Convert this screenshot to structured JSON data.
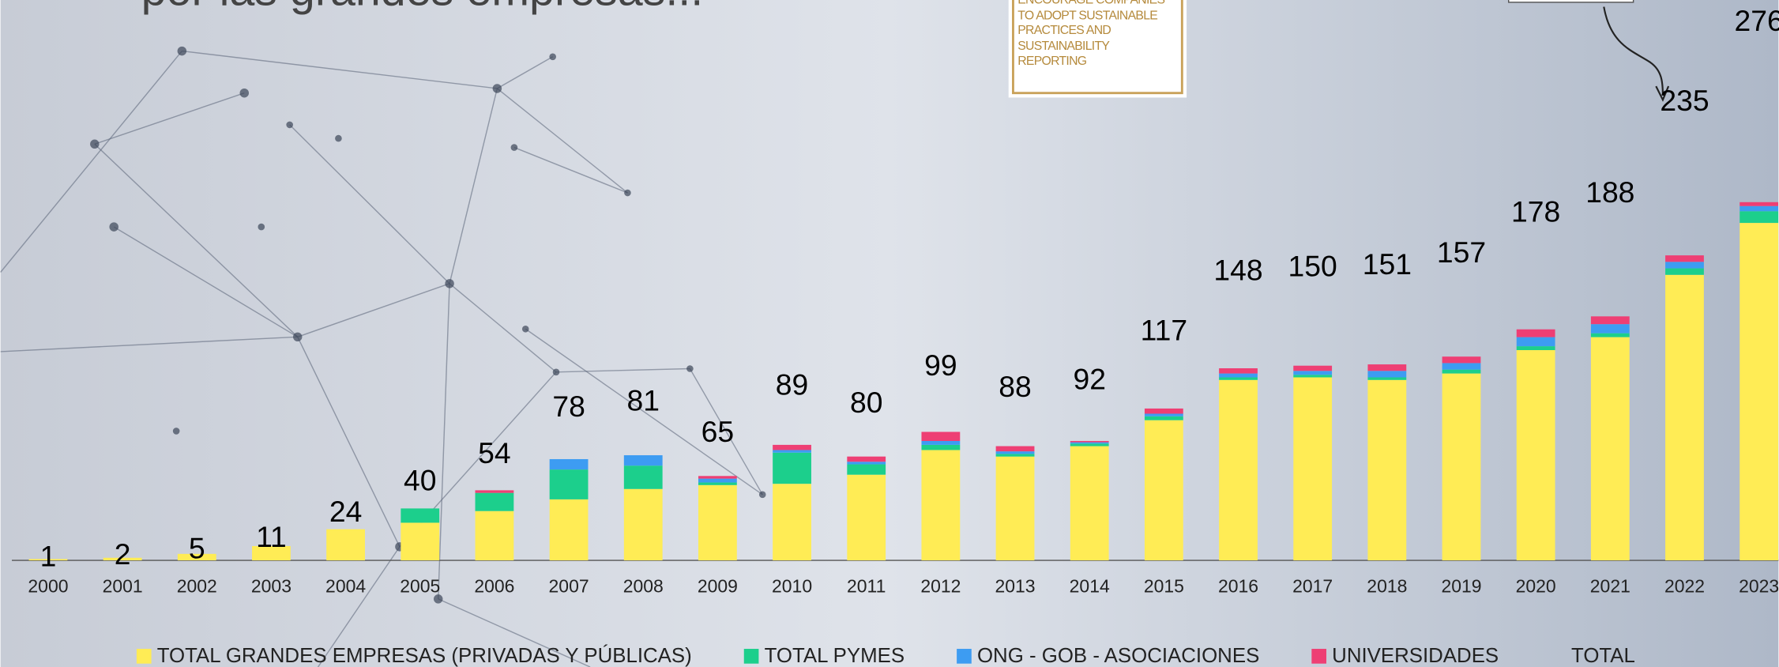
{
  "chart_data": {
    "type": "stacked-bar",
    "title": "por las grandes empresas...",
    "image_text": "ENCOURAGE COMPANIES TO ADOPT SUSTAINABLE PRACTICES AND SUSTAINABILITY REPORTING",
    "categories": [
      "2000",
      "2001",
      "2002",
      "2003",
      "2004",
      "2005",
      "2006",
      "2007",
      "2008",
      "2009",
      "2010",
      "2011",
      "2012",
      "2013",
      "2014",
      "2015",
      "2016",
      "2017",
      "2018",
      "2019",
      "2020",
      "2021",
      "2022",
      "2023"
    ],
    "series": [
      {
        "name": "TOTAL GRANDES EMPRESAS (PRIVADAS Y PÚBLICAS)",
        "color": "#ffec55",
        "values": [
          1,
          2,
          5,
          11,
          24,
          29,
          38,
          47,
          55,
          58,
          59,
          66,
          85,
          80,
          88,
          108,
          139,
          141,
          139,
          144,
          162,
          172,
          220,
          260
        ]
      },
      {
        "name": "TOTAL PYMES",
        "color": "#1ccf8c",
        "values": [
          0,
          0,
          0,
          0,
          0,
          11,
          14,
          23,
          18,
          2,
          24,
          8,
          4,
          2,
          2,
          3,
          2,
          2,
          2,
          3,
          3,
          3,
          5,
          9
        ]
      },
      {
        "name": "ONG - GOB - ASOCIACIONES",
        "color": "#3d9cf2",
        "values": [
          0,
          0,
          0,
          0,
          0,
          0,
          0,
          8,
          8,
          3,
          2,
          2,
          3,
          2,
          1,
          2,
          3,
          3,
          5,
          5,
          7,
          7,
          5,
          4
        ]
      },
      {
        "name": "UNIVERSIDADES",
        "color": "#ee3f74",
        "values": [
          0,
          0,
          0,
          0,
          0,
          0,
          2,
          0,
          0,
          2,
          4,
          4,
          7,
          4,
          1,
          4,
          4,
          4,
          5,
          5,
          6,
          6,
          5,
          3
        ]
      }
    ],
    "total": {
      "name": "TOTAL",
      "values": [
        1,
        2,
        5,
        11,
        24,
        40,
        54,
        78,
        81,
        65,
        89,
        80,
        99,
        88,
        92,
        117,
        148,
        150,
        151,
        157,
        178,
        188,
        235,
        276
      ]
    },
    "ylim": [
      0,
      430
    ]
  }
}
